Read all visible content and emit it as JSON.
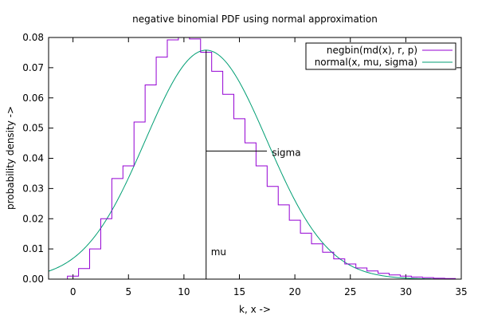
{
  "chart_data": {
    "type": "line",
    "title": "negative binomial PDF using normal approximation",
    "xlabel": "k, x ->",
    "ylabel": "probability density ->",
    "xlim": [
      -2.2,
      35
    ],
    "ylim": [
      0,
      0.08
    ],
    "x_ticks": [
      0,
      5,
      10,
      15,
      20,
      25,
      30,
      35
    ],
    "y_ticks": [
      0,
      0.01,
      0.02,
      0.03,
      0.04,
      0.05,
      0.06,
      0.07,
      0.08
    ],
    "x_tick_labels": [
      "0",
      "5",
      "10",
      "15",
      "20",
      "25",
      "30",
      "35"
    ],
    "y_tick_labels": [
      "0.00",
      "0.01",
      "0.02",
      "0.03",
      "0.04",
      "0.05",
      "0.06",
      "0.07",
      "0.08"
    ],
    "grid": false,
    "legend_position": "top-right",
    "series": [
      {
        "name": "negbin(md(x), r, p)",
        "kind": "step",
        "color": "#9400d3",
        "k": [
          -1,
          0,
          1,
          2,
          3,
          4,
          5,
          6,
          7,
          8,
          9,
          10,
          11,
          12,
          13,
          14,
          15,
          16,
          17,
          18,
          19,
          20,
          21,
          22,
          23,
          24,
          25,
          26,
          27,
          28,
          29,
          30,
          31,
          32,
          33,
          34
        ],
        "values": [
          0.0,
          0.001,
          0.0035,
          0.01,
          0.02,
          0.0333,
          0.0375,
          0.052,
          0.0643,
          0.0735,
          0.0792,
          0.0811,
          0.0795,
          0.0751,
          0.0688,
          0.0612,
          0.0531,
          0.0451,
          0.0375,
          0.0307,
          0.0246,
          0.0195,
          0.0152,
          0.0117,
          0.0089,
          0.0067,
          0.005,
          0.0037,
          0.0027,
          0.0019,
          0.0014,
          0.001,
          0.0007,
          0.0005,
          0.0003,
          0.0002
        ]
      },
      {
        "name": "normal(x, mu, sigma)",
        "kind": "curve",
        "color": "#009e73",
        "mu": 12,
        "sigma": 5.477,
        "peak": 0.0758
      }
    ],
    "annotations": [
      {
        "label": "mu",
        "x": 12,
        "y": 0.009
      },
      {
        "label": "sigma",
        "x": 17.5,
        "y": 0.0418
      }
    ],
    "mu_line": {
      "x": 12,
      "y_top": 0.0758
    },
    "sigma_line": {
      "x_start": 12,
      "x_end": 17.48,
      "y": 0.0424
    }
  }
}
